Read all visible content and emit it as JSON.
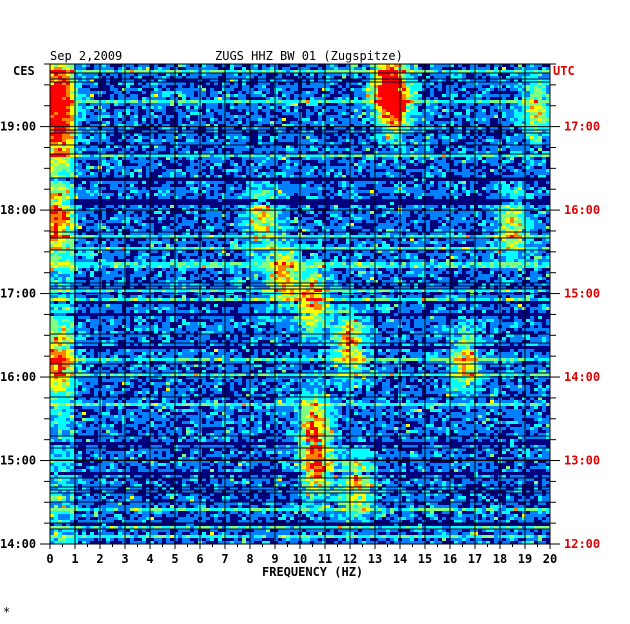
{
  "chart_data": {
    "type": "heatmap",
    "title": "ZUGS HHZ BW 01 (Zugspitze)",
    "date": "Sep 2,2009",
    "left_timezone": "CES",
    "right_timezone": "UTC",
    "xlabel": "FREQUENCY (HZ)",
    "xlim": [
      0,
      20
    ],
    "x_ticks": [
      "0",
      "1",
      "2",
      "3",
      "4",
      "5",
      "6",
      "7",
      "8",
      "9",
      "10",
      "11",
      "12",
      "13",
      "14",
      "15",
      "16",
      "17",
      "18",
      "19",
      "20"
    ],
    "left_time_labels": [
      "19:00",
      "18:00",
      "17:00",
      "16:00",
      "15:00",
      "14:00"
    ],
    "right_time_labels": [
      "17:00",
      "16:00",
      "15:00",
      "14:00",
      "13:00",
      "12:00"
    ],
    "time_range_ces_hours": [
      14.0,
      19.75
    ],
    "grid": true,
    "colormap": [
      "#00007f",
      "#0000ff",
      "#0080ff",
      "#00ffff",
      "#80ff80",
      "#ffff00",
      "#ff8000",
      "#ff0000"
    ],
    "hot_spots": [
      {
        "freq": 0.4,
        "time_ces": 19.4,
        "level": 0.7
      },
      {
        "freq": 0.3,
        "time_ces": 18.9,
        "level": 0.6
      },
      {
        "freq": 0.2,
        "time_ces": 17.9,
        "level": 0.6
      },
      {
        "freq": 0.3,
        "time_ces": 16.2,
        "level": 0.55
      },
      {
        "freq": 13.8,
        "time_ces": 19.3,
        "level": 0.75
      },
      {
        "freq": 13.5,
        "time_ces": 19.5,
        "level": 0.6
      },
      {
        "freq": 10.5,
        "time_ces": 16.9,
        "level": 0.6
      },
      {
        "freq": 10.6,
        "time_ces": 15.4,
        "level": 0.6
      },
      {
        "freq": 10.7,
        "time_ces": 14.9,
        "level": 0.55
      },
      {
        "freq": 12.0,
        "time_ces": 16.4,
        "level": 0.55
      },
      {
        "freq": 12.3,
        "time_ces": 14.7,
        "level": 0.5
      },
      {
        "freq": 9.3,
        "time_ces": 17.2,
        "level": 0.5
      },
      {
        "freq": 8.5,
        "time_ces": 17.9,
        "level": 0.45
      },
      {
        "freq": 18.5,
        "time_ces": 17.8,
        "level": 0.45
      },
      {
        "freq": 16.6,
        "time_ces": 16.2,
        "level": 0.45
      },
      {
        "freq": 19.5,
        "time_ces": 19.2,
        "level": 0.4
      }
    ],
    "footer_mark": "*"
  }
}
